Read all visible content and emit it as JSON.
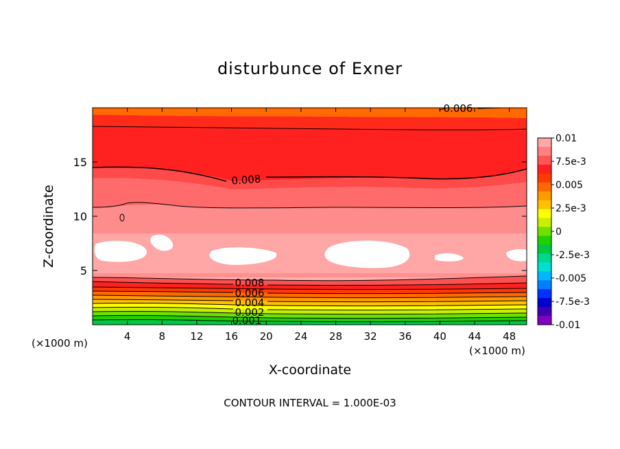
{
  "chart_data": {
    "type": "heatmap",
    "title": "disturbunce of Exner",
    "xlabel": "X-coordinate",
    "ylabel": "Z-coordinate",
    "x_unit_left": "(×1000 m)",
    "x_unit_right": "(×1000 m)",
    "xlim": [
      0,
      50
    ],
    "ylim": [
      0,
      20
    ],
    "xticks": [
      4,
      8,
      12,
      16,
      20,
      24,
      28,
      32,
      36,
      40,
      44,
      48
    ],
    "yticks": [
      5,
      10,
      15
    ],
    "footer": "CONTOUR INTERVAL = 1.000E-03",
    "contour_labels": [
      "0.006",
      "0.008",
      "0.008",
      "0.006",
      "0.004",
      "0.002",
      "0.001"
    ],
    "colorbar": {
      "tick_labels": [
        "0.01",
        "7.5e-3",
        "0.005",
        "2.5e-3",
        "0",
        "-2.5e-3",
        "-0.005",
        "-7.5e-3",
        "-0.01"
      ],
      "colors": [
        "#ffa6a6",
        "#ff8080",
        "#ff5555",
        "#ff2020",
        "#ff3a00",
        "#ff6a00",
        "#ff9900",
        "#ffc000",
        "#ffff00",
        "#c8f000",
        "#70e000",
        "#22d000",
        "#00c840",
        "#00d890",
        "#00e0d0",
        "#00b8ff",
        "#0080ff",
        "#0030ff",
        "#0000d0",
        "#4000b0",
        "#8000c0"
      ]
    }
  }
}
